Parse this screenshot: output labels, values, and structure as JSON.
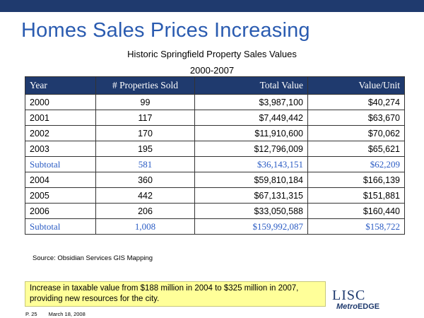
{
  "slide": {
    "title": "Homes Sales Prices Increasing",
    "subtitle": "Historic Springfield Property Sales Values",
    "period": "2000-2007"
  },
  "table": {
    "headers": [
      "Year",
      "# Properties Sold",
      "Total Value",
      "Value/Unit"
    ],
    "rows": [
      {
        "year": "2000",
        "sold": "99",
        "total": "$3,987,100",
        "unit": "$40,274"
      },
      {
        "year": "2001",
        "sold": "117",
        "total": "$7,449,442",
        "unit": "$63,670"
      },
      {
        "year": "2002",
        "sold": "170",
        "total": "$11,910,600",
        "unit": "$70,062"
      },
      {
        "year": "2003",
        "sold": "195",
        "total": "$12,796,009",
        "unit": "$65,621"
      },
      {
        "year": "Subtotal",
        "sold": "581",
        "total": "$36,143,151",
        "unit": "$62,209"
      },
      {
        "year": "2004",
        "sold": "360",
        "total": "$59,810,184",
        "unit": "$166,139"
      },
      {
        "year": "2005",
        "sold": "442",
        "total": "$67,131,315",
        "unit": "$151,881"
      },
      {
        "year": "2006",
        "sold": "206",
        "total": "$33,050,588",
        "unit": "$160,440"
      },
      {
        "year": "Subtotal",
        "sold": "1,008",
        "total": "$159,992,087",
        "unit": "$158,722"
      }
    ]
  },
  "source": "Source: Obsidian Services GIS Mapping",
  "note": "Increase in taxable value from $188 million in 2004 to $325 million in 2007, providing new resources for the city.",
  "footer": {
    "page": "P. 25",
    "date": "March 18, 2008"
  },
  "logo": {
    "top": "LISC",
    "bottom_prefix": "Metro",
    "bottom_suffix": "EDGE"
  },
  "colors": {
    "header_bar": "#1f3a6e",
    "title": "#2a5bb0",
    "subtotal_text": "#2b5cc4",
    "note_bg": "#ffff99"
  }
}
